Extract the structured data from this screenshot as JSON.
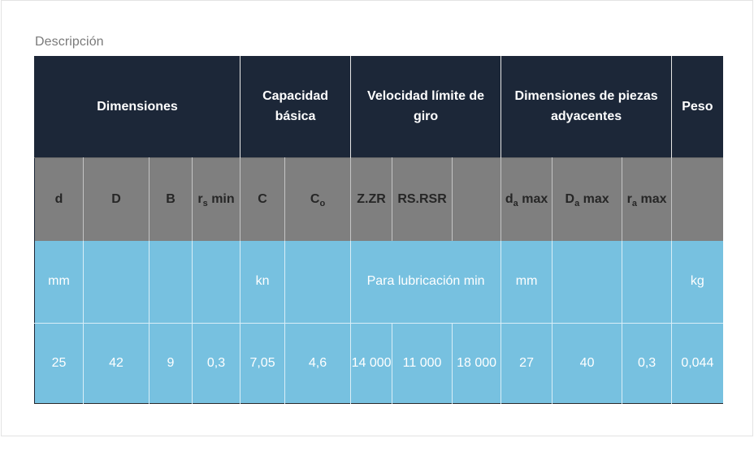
{
  "description_label": "Descripción",
  "groups": [
    {
      "label": "Dimensiones"
    },
    {
      "label": "Capacidad básica"
    },
    {
      "label": "Velocidad límite de giro"
    },
    {
      "label": "Dimensiones de piezas adyacentes"
    },
    {
      "label": "Peso"
    }
  ],
  "columns": [
    {
      "main": "d",
      "sub": "",
      "tail": ""
    },
    {
      "main": "D",
      "sub": "",
      "tail": ""
    },
    {
      "main": "B",
      "sub": "",
      "tail": ""
    },
    {
      "main": "r",
      "sub": "s",
      "tail": " min"
    },
    {
      "main": "C",
      "sub": "",
      "tail": ""
    },
    {
      "main": "C",
      "sub": "o",
      "tail": ""
    },
    {
      "main": "Z.ZR",
      "sub": "",
      "tail": ""
    },
    {
      "main": "RS.RSR",
      "sub": "",
      "tail": ""
    },
    {
      "main": "",
      "sub": "",
      "tail": ""
    },
    {
      "main": "d",
      "sub": "a",
      "tail": " max"
    },
    {
      "main": "D",
      "sub": "a",
      "tail": " max"
    },
    {
      "main": "r",
      "sub": "a",
      "tail": " max"
    },
    {
      "main": "",
      "sub": "",
      "tail": ""
    }
  ],
  "units": {
    "dimensions": "mm",
    "capacity": "kn",
    "speed": "Para lubricación min",
    "adjacent": "mm",
    "weight": "kg"
  },
  "values": [
    "25",
    "42",
    "9",
    "0,3",
    "7,05",
    "4,6",
    "14 000",
    "11 000",
    "18 000",
    "27",
    "40",
    "0,3",
    "0,044"
  ]
}
